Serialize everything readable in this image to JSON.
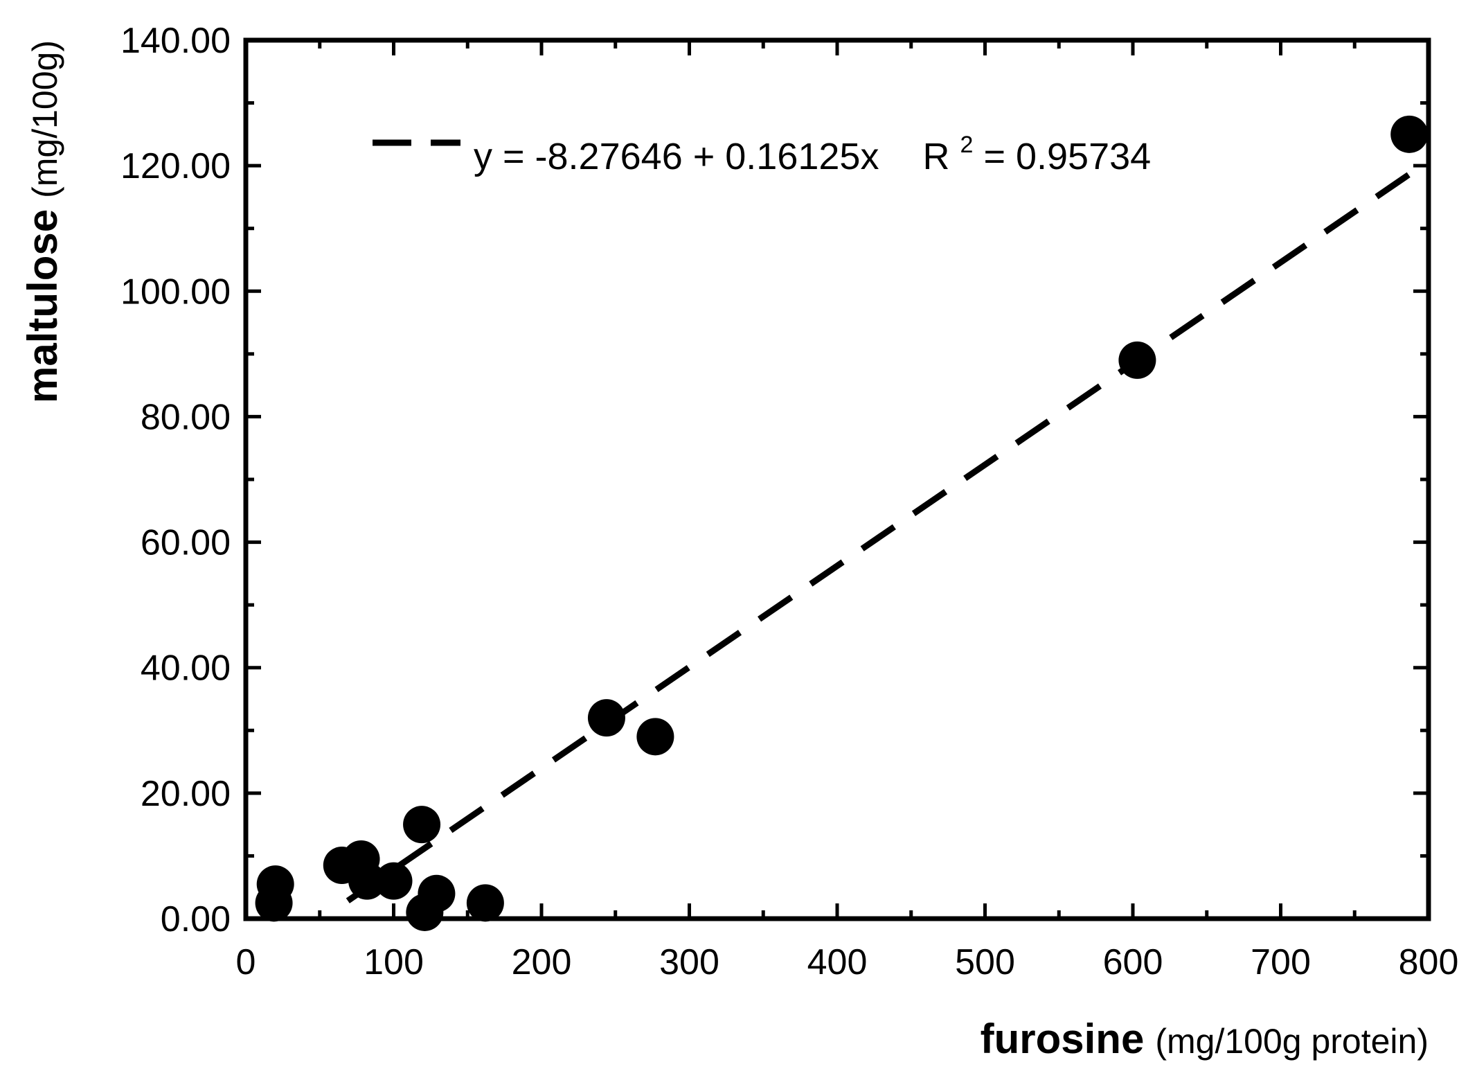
{
  "chart_data": {
    "type": "scatter",
    "xlabel": "furosine",
    "xlabel_unit": "(mg/100g protein)",
    "ylabel": "maltulose",
    "ylabel_unit": "(mg/100g)",
    "xlim": [
      0,
      800
    ],
    "ylim": [
      0,
      140
    ],
    "x_ticks": [
      "0",
      "100",
      "200",
      "300",
      "400",
      "500",
      "600",
      "700",
      "800"
    ],
    "y_ticks": [
      "0.00",
      "20.00",
      "40.00",
      "60.00",
      "80.00",
      "100.00",
      "120.00",
      "140.00"
    ],
    "grid": false,
    "legend_position": "top-left",
    "points": [
      {
        "x": 19,
        "y": 2.5
      },
      {
        "x": 20,
        "y": 5.5
      },
      {
        "x": 65,
        "y": 8.5
      },
      {
        "x": 78,
        "y": 9.5
      },
      {
        "x": 82,
        "y": 6
      },
      {
        "x": 100,
        "y": 6
      },
      {
        "x": 119,
        "y": 15
      },
      {
        "x": 121,
        "y": 1
      },
      {
        "x": 129,
        "y": 4
      },
      {
        "x": 162,
        "y": 2.5
      },
      {
        "x": 244,
        "y": 32
      },
      {
        "x": 277,
        "y": 29
      },
      {
        "x": 603,
        "y": 89
      },
      {
        "x": 787,
        "y": 125
      }
    ],
    "fit": {
      "style": "dashed",
      "intercept": -8.27646,
      "slope": 0.16125,
      "x_range": [
        69,
        787
      ],
      "equation_text": "y = -8.27646 + 0.16125x",
      "r2_label": "R",
      "r2_sup": "2",
      "r2_value": "= 0.95734"
    }
  }
}
